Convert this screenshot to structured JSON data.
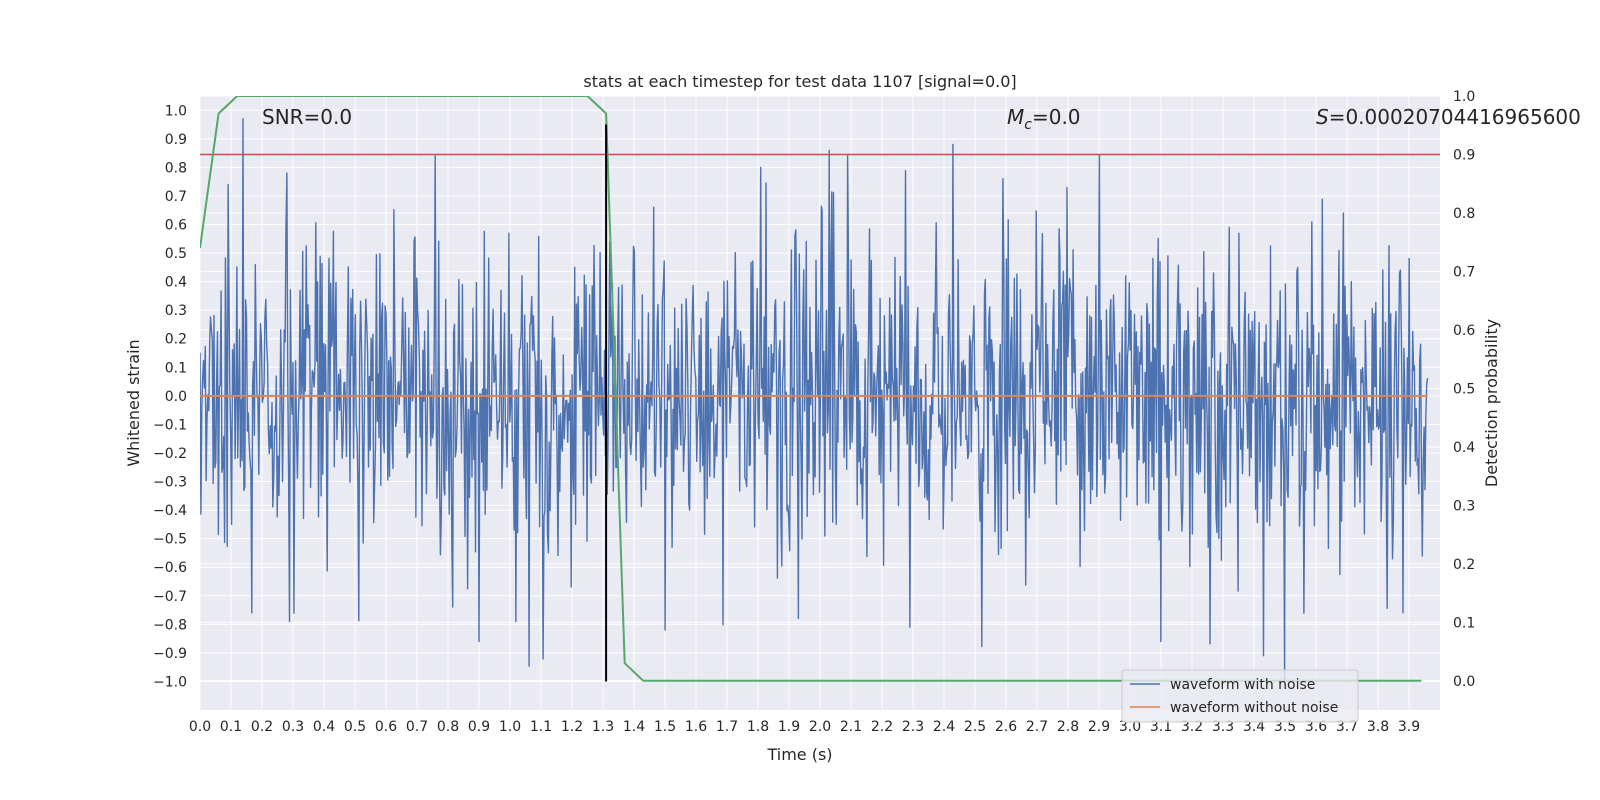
{
  "chart_data": {
    "type": "line",
    "title": "stats at each timestep for test data 1107 [signal=0.0]",
    "xlabel": "Time (s)",
    "ylabel": "Whitened strain",
    "y2label": "Detection probability",
    "xlim": [
      0.0,
      4.0
    ],
    "ylim": [
      -1.1,
      1.05
    ],
    "y2lim": [
      -0.05,
      1.0
    ],
    "xticks": [
      0.0,
      0.1,
      0.2,
      0.3,
      0.4,
      0.5,
      0.6,
      0.7,
      0.8,
      0.9,
      1.0,
      1.1,
      1.2,
      1.3,
      1.4,
      1.5,
      1.6,
      1.7,
      1.8,
      1.9,
      2.0,
      2.1,
      2.2,
      2.3,
      2.4,
      2.5,
      2.6,
      2.7,
      2.8,
      2.9,
      3.0,
      3.1,
      3.2,
      3.3,
      3.4,
      3.5,
      3.6,
      3.7,
      3.8,
      3.9
    ],
    "xtick_labels": [
      "0.0",
      "0.1",
      "0.2",
      "0.3",
      "0.4",
      "0.5",
      "0.6",
      "0.7",
      "0.8",
      "0.9",
      "1.0",
      "1.1",
      "1.2",
      "1.3",
      "1.4",
      "1.5",
      "1.6",
      "1.7",
      "1.8",
      "1.9",
      "2.0",
      "2.1",
      "2.2",
      "2.3",
      "2.4",
      "2.5",
      "2.6",
      "2.7",
      "2.8",
      "2.9",
      "3.0",
      "3.1",
      "3.2",
      "3.3",
      "3.4",
      "3.5",
      "3.6",
      "3.7",
      "3.8",
      "3.9"
    ],
    "yticks": [
      1.0,
      0.9,
      0.8,
      0.7,
      0.6,
      0.5,
      0.4,
      0.3,
      0.2,
      0.1,
      0.0,
      -0.1,
      -0.2,
      -0.3,
      -0.4,
      -0.5,
      -0.6,
      -0.7,
      -0.8,
      -0.9,
      -1.0
    ],
    "ytick_labels": [
      "1.0",
      "0.9",
      "0.8",
      "0.7",
      "0.6",
      "0.5",
      "0.4",
      "0.3",
      "0.2",
      "0.1",
      "0.0",
      "−0.1",
      "−0.2",
      "−0.3",
      "−0.4",
      "−0.5",
      "−0.6",
      "−0.7",
      "−0.8",
      "−0.9",
      "−1.0"
    ],
    "y2ticks": [
      1.0,
      0.9,
      0.8,
      0.7,
      0.6,
      0.5,
      0.4,
      0.3,
      0.2,
      0.1,
      0.0
    ],
    "y2tick_labels": [
      "1.0",
      "0.9",
      "0.8",
      "0.7",
      "0.6",
      "0.5",
      "0.4",
      "0.3",
      "0.2",
      "0.1",
      "0.0"
    ],
    "annotations": {
      "snr": "SNR=0.0",
      "mc_symbol": "M",
      "mc_sub": "c",
      "mc_value": "=0.0",
      "s_symbol": "S",
      "s_value": "=0.00020704416965600"
    },
    "threshold": {
      "axis": "y2",
      "value": 0.9,
      "color": "#c44e52"
    },
    "vline": {
      "x": 1.31,
      "ymin": -1.0,
      "ymax": 0.95,
      "color": "#000000"
    },
    "series": [
      {
        "name": "waveform with noise",
        "axis": "y",
        "color": "#4c72b0",
        "kind": "noise",
        "n_points": 1400,
        "t_start": 0.0,
        "t_end": 3.96,
        "amplitude_sigma": 0.28,
        "notable_peaks": [
          {
            "x": 0.14,
            "y": 0.97
          },
          {
            "x": 0.09,
            "y": 0.74
          },
          {
            "x": 0.28,
            "y": 0.78
          },
          {
            "x": 0.76,
            "y": 0.84
          },
          {
            "x": 1.81,
            "y": 0.8
          },
          {
            "x": 2.03,
            "y": 0.86
          },
          {
            "x": 2.09,
            "y": 0.84
          },
          {
            "x": 2.43,
            "y": 0.88
          },
          {
            "x": 2.59,
            "y": 0.76
          },
          {
            "x": 0.29,
            "y": -0.79
          },
          {
            "x": 0.9,
            "y": -0.86
          },
          {
            "x": 1.02,
            "y": -0.79
          },
          {
            "x": 2.29,
            "y": -0.81
          },
          {
            "x": 3.43,
            "y": -0.91
          },
          {
            "x": 3.5,
            "y": -1.0
          },
          {
            "x": 3.1,
            "y": -0.86
          },
          {
            "x": 1.5,
            "y": -0.82
          },
          {
            "x": 1.93,
            "y": -0.78
          }
        ]
      },
      {
        "name": "waveform without noise",
        "axis": "y",
        "color": "#dd8452",
        "x": [
          0.0,
          3.96
        ],
        "y": [
          0.0,
          0.0
        ]
      },
      {
        "name": "detection probability",
        "axis": "y2",
        "color": "#55a868",
        "x": [
          0.0,
          0.06,
          0.12,
          0.14,
          0.19,
          0.25,
          1.25,
          1.31,
          1.37,
          1.43,
          1.5,
          3.94
        ],
        "y": [
          0.74,
          0.97,
          1.0,
          1.0,
          1.0,
          1.0,
          1.0,
          0.97,
          0.03,
          0.0,
          0.0,
          0.0
        ]
      }
    ],
    "legend": {
      "position": "lower-right",
      "entries": [
        "waveform with noise",
        "waveform without noise"
      ]
    }
  }
}
